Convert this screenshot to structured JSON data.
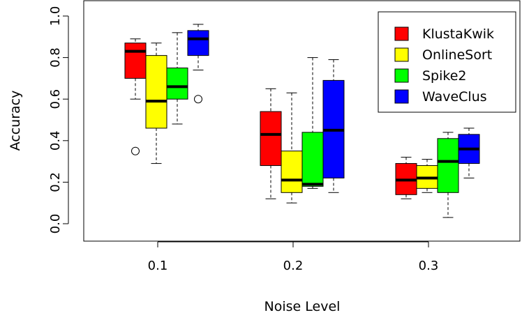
{
  "chart_data": {
    "type": "boxplot",
    "xlabel": "Noise Level",
    "ylabel": "Accuracy",
    "ylim": [
      0.0,
      1.0
    ],
    "yticks": [
      "0.0",
      "0.2",
      "0.4",
      "0.6",
      "0.8",
      "1.0"
    ],
    "categories": [
      "0.1",
      "0.2",
      "0.3"
    ],
    "legend_position": "top-right",
    "series": [
      {
        "name": "KlustaKwik",
        "color": "#ff0000",
        "boxes": [
          {
            "min": 0.6,
            "q1": 0.7,
            "median": 0.83,
            "q3": 0.87,
            "max": 0.89,
            "outliers": [
              0.35
            ]
          },
          {
            "min": 0.12,
            "q1": 0.28,
            "median": 0.43,
            "q3": 0.54,
            "max": 0.65,
            "outliers": []
          },
          {
            "min": 0.12,
            "q1": 0.14,
            "median": 0.21,
            "q3": 0.29,
            "max": 0.32,
            "outliers": []
          }
        ]
      },
      {
        "name": "OnlineSort",
        "color": "#ffff00",
        "boxes": [
          {
            "min": 0.29,
            "q1": 0.46,
            "median": 0.59,
            "q3": 0.81,
            "max": 0.87,
            "outliers": []
          },
          {
            "min": 0.1,
            "q1": 0.15,
            "median": 0.21,
            "q3": 0.35,
            "max": 0.63,
            "outliers": []
          },
          {
            "min": 0.15,
            "q1": 0.17,
            "median": 0.22,
            "q3": 0.28,
            "max": 0.31,
            "outliers": []
          }
        ]
      },
      {
        "name": "Spike2",
        "color": "#00ff00",
        "boxes": [
          {
            "min": 0.48,
            "q1": 0.6,
            "median": 0.66,
            "q3": 0.75,
            "max": 0.92,
            "outliers": []
          },
          {
            "min": 0.17,
            "q1": 0.18,
            "median": 0.19,
            "q3": 0.44,
            "max": 0.8,
            "outliers": []
          },
          {
            "min": 0.03,
            "q1": 0.15,
            "median": 0.3,
            "q3": 0.41,
            "max": 0.44,
            "outliers": []
          }
        ]
      },
      {
        "name": "WaveClus",
        "color": "#0000ff",
        "boxes": [
          {
            "min": 0.74,
            "q1": 0.81,
            "median": 0.89,
            "q3": 0.93,
            "max": 0.96,
            "outliers": [
              0.6
            ]
          },
          {
            "min": 0.15,
            "q1": 0.22,
            "median": 0.45,
            "q3": 0.69,
            "max": 0.79,
            "outliers": []
          },
          {
            "min": 0.22,
            "q1": 0.29,
            "median": 0.36,
            "q3": 0.43,
            "max": 0.46,
            "outliers": []
          }
        ]
      }
    ]
  }
}
